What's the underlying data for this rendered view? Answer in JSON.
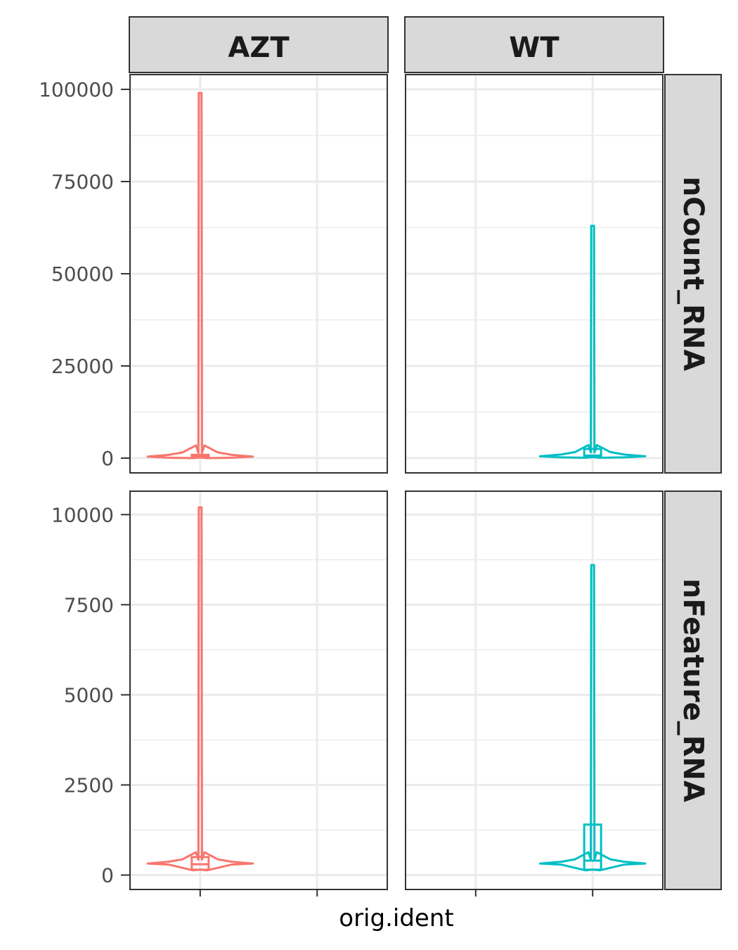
{
  "chart_data": {
    "type": "violin",
    "xlabel": "orig.ident",
    "colors": {
      "AZT": "#F8766D",
      "WT": "#00BFC4"
    },
    "col_facets": [
      "AZT",
      "WT"
    ],
    "row_facets": [
      {
        "name": "nCount_RNA",
        "ylim": [
          -4000,
          104000
        ],
        "ticks": [
          0,
          25000,
          50000,
          75000,
          100000
        ],
        "tick_labels": [
          "0",
          "25000",
          "50000",
          "75000",
          "100000"
        ]
      },
      {
        "name": "nFeature_RNA",
        "ylim": [
          -400,
          10650
        ],
        "ticks": [
          0,
          2500,
          5000,
          7500,
          10000
        ],
        "tick_labels": [
          "0",
          "2500",
          "5000",
          "7500",
          "10000"
        ]
      }
    ],
    "grid": true,
    "panels": [
      {
        "row": "nCount_RNA",
        "col": "AZT",
        "group": "AZT",
        "x_position": 1,
        "min": 200,
        "max": 99000,
        "mode": 400,
        "box": {
          "q1": 250,
          "median": 450,
          "q3": 900
        }
      },
      {
        "row": "nCount_RNA",
        "col": "WT",
        "group": "WT",
        "x_position": 2,
        "min": 300,
        "max": 63000,
        "mode": 500,
        "box": {
          "q1": 300,
          "median": 700,
          "q3": 2500
        }
      },
      {
        "row": "nFeature_RNA",
        "col": "AZT",
        "group": "AZT",
        "x_position": 1,
        "min": 150,
        "max": 10200,
        "mode": 320,
        "box": {
          "q1": 150,
          "median": 300,
          "q3": 500
        }
      },
      {
        "row": "nFeature_RNA",
        "col": "WT",
        "group": "WT",
        "x_position": 2,
        "min": 150,
        "max": 8600,
        "mode": 320,
        "box": {
          "q1": 150,
          "median": 400,
          "q3": 1400
        }
      }
    ]
  }
}
